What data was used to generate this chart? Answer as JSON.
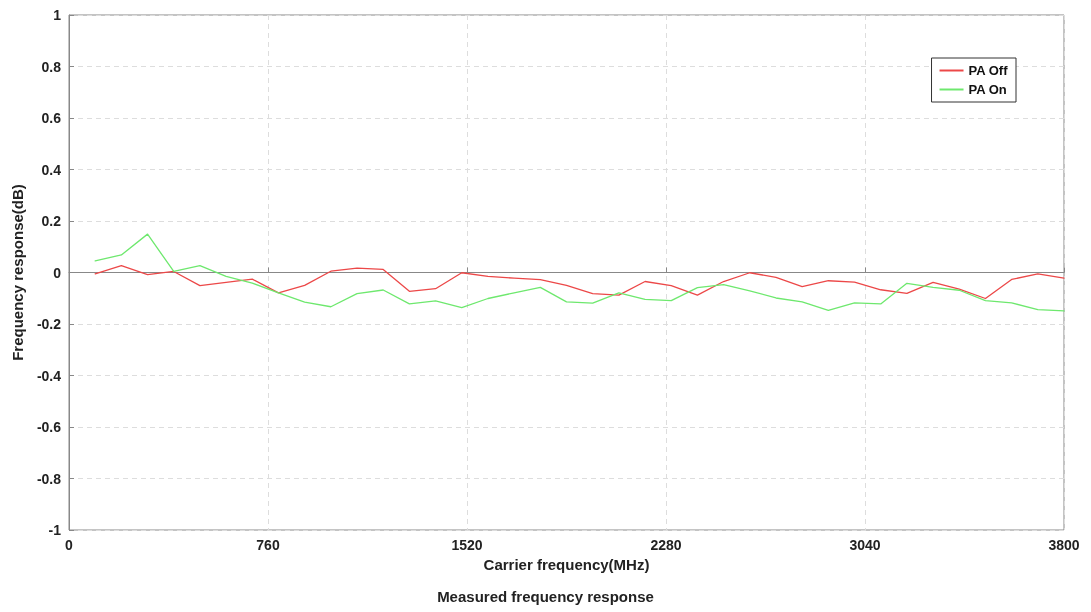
{
  "chart_data": {
    "type": "line",
    "xlabel": "Carrier frequency(MHz)",
    "ylabel": "Frequency response(dB)",
    "annotations": [
      "Measured frequency response"
    ],
    "x": [
      100,
      200,
      300,
      400,
      500,
      600,
      700,
      800,
      900,
      1000,
      1100,
      1200,
      1300,
      1400,
      1500,
      1600,
      1700,
      1800,
      1900,
      2000,
      2100,
      2200,
      2300,
      2400,
      2500,
      2600,
      2700,
      2800,
      2900,
      3000,
      3100,
      3200,
      3300,
      3400,
      3500,
      3600,
      3700,
      3800
    ],
    "series": [
      {
        "name": "PA Off",
        "color": "#ec4848",
        "values": [
          -0.005,
          0.027,
          -0.008,
          0.004,
          -0.051,
          -0.038,
          -0.026,
          -0.079,
          -0.05,
          0.005,
          0.017,
          0.012,
          -0.073,
          -0.063,
          -0.001,
          -0.015,
          -0.022,
          -0.028,
          -0.05,
          -0.082,
          -0.088,
          -0.035,
          -0.051,
          -0.088,
          -0.035,
          -0.001,
          -0.019,
          -0.055,
          -0.032,
          -0.037,
          -0.067,
          -0.081,
          -0.038,
          -0.065,
          -0.101,
          -0.027,
          -0.005,
          -0.022
        ]
      },
      {
        "name": "PA On",
        "color": "#6ee86e",
        "values": [
          0.045,
          0.068,
          0.149,
          0.004,
          0.027,
          -0.015,
          -0.041,
          -0.079,
          -0.115,
          -0.133,
          -0.082,
          -0.068,
          -0.122,
          -0.11,
          -0.136,
          -0.101,
          -0.079,
          -0.058,
          -0.114,
          -0.119,
          -0.079,
          -0.104,
          -0.109,
          -0.059,
          -0.047,
          -0.071,
          -0.099,
          -0.114,
          -0.147,
          -0.118,
          -0.122,
          -0.042,
          -0.058,
          -0.069,
          -0.109,
          -0.118,
          -0.144,
          -0.149
        ]
      }
    ],
    "xlim": [
      0,
      3800
    ],
    "xticks": [
      0,
      760,
      1520,
      2280,
      3040,
      3800
    ],
    "ylim": [
      -1,
      1
    ],
    "yticks": [
      -1,
      -0.8,
      -0.6,
      -0.4,
      -0.2,
      0,
      0.2,
      0.4,
      0.6,
      0.8,
      1
    ],
    "grid": true,
    "legend": "top right",
    "marker": "none",
    "line_style": "solid"
  }
}
